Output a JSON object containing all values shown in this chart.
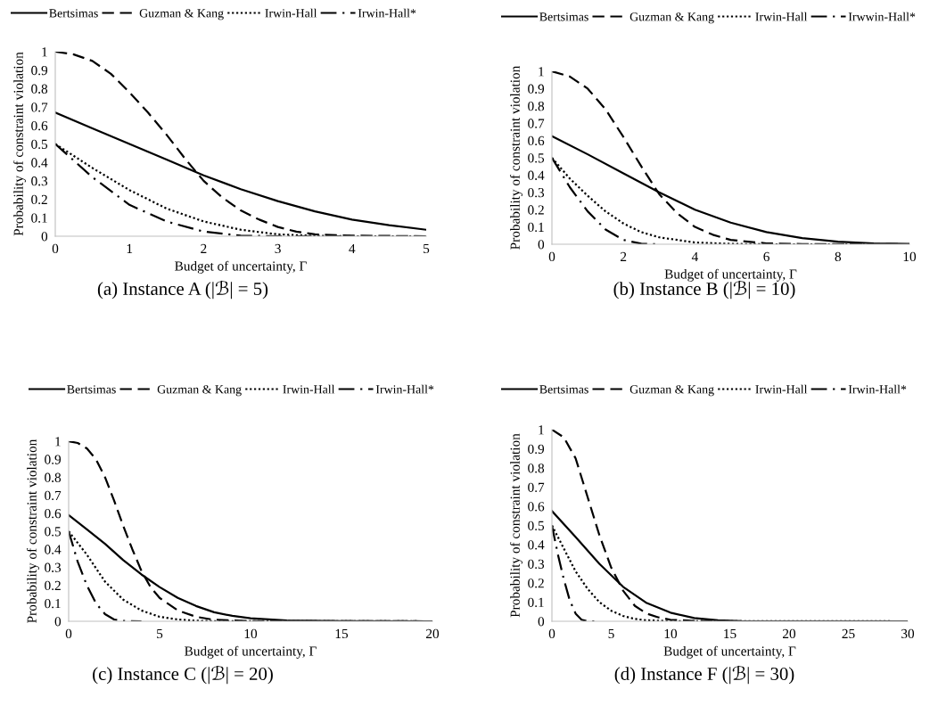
{
  "chart_data": [
    {
      "type": "line",
      "title": "(a) Instance A (|ℬ| = 5)",
      "xlabel": "Budget of uncertainty, Γ",
      "ylabel": "Probability of constraint violation",
      "xlim": [
        0,
        5
      ],
      "xticks": [
        0,
        1,
        2,
        3,
        4,
        5
      ],
      "ylim": [
        0,
        1
      ],
      "yticks": [
        0,
        0.1,
        0.2,
        0.3,
        0.4,
        0.5,
        0.6,
        0.7,
        0.8,
        0.9,
        1
      ],
      "legend": "top",
      "grid": false,
      "series": [
        {
          "name": "Bertsimas",
          "color": "#000000",
          "line_style": "solid",
          "x": [
            0,
            0.5,
            1,
            1.5,
            2,
            2.5,
            3,
            3.5,
            4,
            4.5,
            5
          ],
          "values": [
            0.67,
            0.585,
            0.5,
            0.415,
            0.33,
            0.255,
            0.19,
            0.135,
            0.09,
            0.06,
            0.035
          ]
        },
        {
          "name": "Guzman & Kang",
          "color": "#000000",
          "line_style": "dashed",
          "x": [
            0,
            0.25,
            0.5,
            0.75,
            1,
            1.25,
            1.5,
            1.75,
            2,
            2.25,
            2.5,
            2.75,
            3,
            3.25,
            3.5,
            4,
            5
          ],
          "values": [
            1,
            0.985,
            0.95,
            0.88,
            0.78,
            0.67,
            0.55,
            0.42,
            0.3,
            0.21,
            0.14,
            0.09,
            0.05,
            0.025,
            0.01,
            0.003,
            0
          ]
        },
        {
          "name": "Irwin-Hall",
          "color": "#000000",
          "line_style": "dotted",
          "x": [
            0,
            0.5,
            1,
            1.5,
            2,
            2.5,
            3,
            3.5,
            4,
            5
          ],
          "values": [
            0.5,
            0.37,
            0.25,
            0.15,
            0.08,
            0.035,
            0.01,
            0.002,
            0,
            0
          ]
        },
        {
          "name": "Irwin-Hall*",
          "color": "#000000",
          "line_style": "dashdot",
          "x": [
            0,
            0.5,
            1,
            1.5,
            2,
            2.5,
            3,
            4
          ],
          "values": [
            0.5,
            0.32,
            0.17,
            0.08,
            0.025,
            0.003,
            0,
            0
          ]
        }
      ]
    },
    {
      "type": "line",
      "title": "(b) Instance B (|ℬ| = 10)",
      "xlabel": "Budget of uncertainty, Γ",
      "ylabel": "Probability of constraint violation",
      "xlim": [
        0,
        10
      ],
      "xticks": [
        0,
        2,
        4,
        6,
        8,
        10
      ],
      "ylim": [
        0,
        1
      ],
      "yticks": [
        0,
        0.1,
        0.2,
        0.3,
        0.4,
        0.5,
        0.6,
        0.7,
        0.8,
        0.9,
        1
      ],
      "legend": "top",
      "grid": false,
      "series": [
        {
          "name": "Bertsimas",
          "color": "#000000",
          "line_style": "solid",
          "x": [
            0,
            1,
            2,
            3,
            4,
            5,
            6,
            7,
            8,
            9,
            10
          ],
          "values": [
            0.625,
            0.52,
            0.41,
            0.3,
            0.2,
            0.125,
            0.07,
            0.035,
            0.015,
            0.005,
            0.002
          ]
        },
        {
          "name": "Guzman & Kang",
          "color": "#000000",
          "line_style": "dashed",
          "x": [
            0,
            0.5,
            1,
            1.5,
            2,
            2.5,
            3,
            3.5,
            4,
            4.5,
            5,
            6,
            7,
            10
          ],
          "values": [
            1,
            0.97,
            0.9,
            0.78,
            0.62,
            0.45,
            0.29,
            0.18,
            0.1,
            0.055,
            0.025,
            0.005,
            0.001,
            0
          ]
        },
        {
          "name": "Irwin-Hall",
          "color": "#000000",
          "line_style": "dotted",
          "x": [
            0,
            0.5,
            1,
            1.5,
            2,
            2.5,
            3,
            4,
            5,
            6,
            10
          ],
          "values": [
            0.5,
            0.38,
            0.28,
            0.19,
            0.12,
            0.07,
            0.04,
            0.01,
            0.002,
            0,
            0
          ]
        },
        {
          "name": "Irwwin-Hall*",
          "color": "#000000",
          "line_style": "dashdot",
          "x": [
            0,
            0.5,
            1,
            1.5,
            2,
            2.5,
            3
          ],
          "values": [
            0.5,
            0.33,
            0.19,
            0.085,
            0.025,
            0.003,
            0
          ]
        }
      ]
    },
    {
      "type": "line",
      "title": "(c) Instance C (|ℬ| = 20)",
      "xlabel": "Budget of uncertainty, Γ",
      "ylabel": "Probability of constraint violation",
      "xlim": [
        0,
        20
      ],
      "xticks": [
        0,
        5,
        10,
        15,
        20
      ],
      "ylim": [
        0,
        1
      ],
      "yticks": [
        0,
        0.1,
        0.2,
        0.3,
        0.4,
        0.5,
        0.6,
        0.7,
        0.8,
        0.9,
        1
      ],
      "legend": "top",
      "grid": false,
      "series": [
        {
          "name": "Bertsimas",
          "color": "#000000",
          "line_style": "solid",
          "x": [
            0,
            1,
            2,
            3,
            4,
            5,
            6,
            7,
            8,
            9,
            10,
            12,
            15,
            20
          ],
          "values": [
            0.59,
            0.51,
            0.43,
            0.34,
            0.26,
            0.19,
            0.13,
            0.085,
            0.05,
            0.03,
            0.017,
            0.005,
            0.001,
            0
          ]
        },
        {
          "name": "Guzman & Kang",
          "color": "#000000",
          "line_style": "dashed",
          "x": [
            0,
            0.5,
            1,
            1.5,
            2,
            2.5,
            3,
            3.5,
            4,
            4.5,
            5,
            6,
            7,
            8,
            10,
            20
          ],
          "values": [
            1,
            0.99,
            0.96,
            0.9,
            0.8,
            0.67,
            0.53,
            0.4,
            0.28,
            0.19,
            0.13,
            0.06,
            0.025,
            0.008,
            0.001,
            0
          ]
        },
        {
          "name": "Irwin-Hall",
          "color": "#000000",
          "line_style": "dotted",
          "x": [
            0,
            1,
            2,
            3,
            4,
            5,
            6,
            7,
            8,
            20
          ],
          "values": [
            0.5,
            0.37,
            0.22,
            0.12,
            0.06,
            0.025,
            0.01,
            0.003,
            0.001,
            0
          ]
        },
        {
          "name": "Irwin-Hall*",
          "color": "#000000",
          "line_style": "dashdot",
          "x": [
            0,
            0.5,
            1,
            1.5,
            2,
            2.5,
            3,
            4
          ],
          "values": [
            0.5,
            0.33,
            0.2,
            0.1,
            0.04,
            0.01,
            0.002,
            0
          ]
        }
      ]
    },
    {
      "type": "line",
      "title": "(d) Instance F (|ℬ| = 30)",
      "xlabel": "Budget of uncertainty, Γ",
      "ylabel": "Probability of constraint violation",
      "xlim": [
        0,
        30
      ],
      "xticks": [
        0,
        5,
        10,
        15,
        20,
        25,
        30
      ],
      "ylim": [
        0,
        1
      ],
      "yticks": [
        0,
        0.1,
        0.2,
        0.3,
        0.4,
        0.5,
        0.6,
        0.7,
        0.8,
        0.9,
        1
      ],
      "legend": "top",
      "grid": false,
      "series": [
        {
          "name": "Bertsimas",
          "color": "#000000",
          "line_style": "solid",
          "x": [
            0,
            2,
            4,
            6,
            8,
            10,
            12,
            14,
            16,
            30
          ],
          "values": [
            0.575,
            0.44,
            0.3,
            0.18,
            0.095,
            0.045,
            0.017,
            0.005,
            0.001,
            0
          ]
        },
        {
          "name": "Guzman & Kang",
          "color": "#000000",
          "line_style": "dashed",
          "x": [
            0,
            1,
            2,
            3,
            4,
            5,
            6,
            7,
            8,
            9,
            10,
            12,
            15,
            30
          ],
          "values": [
            1,
            0.96,
            0.85,
            0.65,
            0.45,
            0.28,
            0.16,
            0.08,
            0.04,
            0.02,
            0.008,
            0.002,
            0,
            0
          ]
        },
        {
          "name": "Irwin-Hall",
          "color": "#000000",
          "line_style": "dotted",
          "x": [
            0,
            1,
            2,
            3,
            4,
            5,
            6,
            7,
            8,
            10,
            30
          ],
          "values": [
            0.5,
            0.38,
            0.26,
            0.17,
            0.1,
            0.055,
            0.028,
            0.012,
            0.005,
            0.001,
            0
          ]
        },
        {
          "name": "Irwin-Hall*",
          "color": "#000000",
          "line_style": "dashdot",
          "x": [
            0,
            0.5,
            1,
            1.5,
            2,
            2.5,
            3,
            4
          ],
          "values": [
            0.5,
            0.35,
            0.22,
            0.11,
            0.04,
            0.008,
            0,
            0
          ]
        }
      ]
    }
  ]
}
